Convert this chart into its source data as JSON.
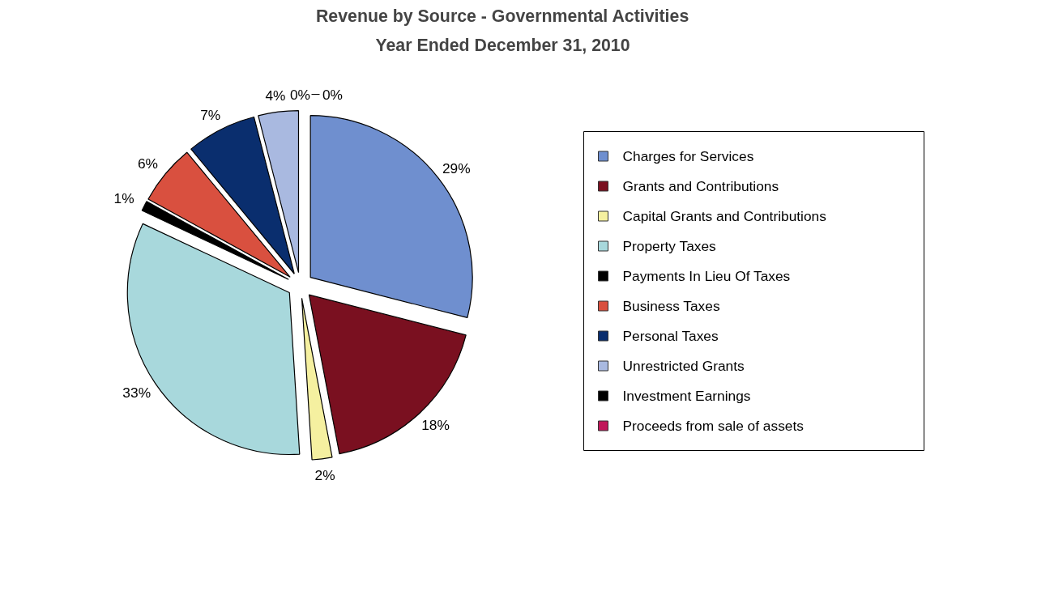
{
  "chart_data": {
    "type": "pie",
    "title": "Revenue by Source - Governmental Activities",
    "subtitle": "Year Ended December 31, 2010",
    "categories": [
      "Charges for Services",
      "Grants and Contributions",
      "Capital Grants and Contributions",
      "Property Taxes",
      "Payments In Lieu Of Taxes",
      "Business Taxes",
      "Personal Taxes",
      "Unrestricted Grants",
      "Investment Earnings",
      "Proceeds from sale of assets"
    ],
    "values": [
      29,
      18,
      2,
      33,
      1,
      6,
      7,
      4,
      0,
      0
    ],
    "value_labels": [
      "29%",
      "18%",
      "2%",
      "33%",
      "1%",
      "6%",
      "7%",
      "4%",
      "0%",
      "0%"
    ],
    "colors": [
      "#6f8fcf",
      "#7a1020",
      "#f5f0a0",
      "#a8d8dc",
      "#000000",
      "#d9503f",
      "#0a2e6e",
      "#a9b9e0",
      "#000000",
      "#c0185a"
    ],
    "legend": "right"
  }
}
